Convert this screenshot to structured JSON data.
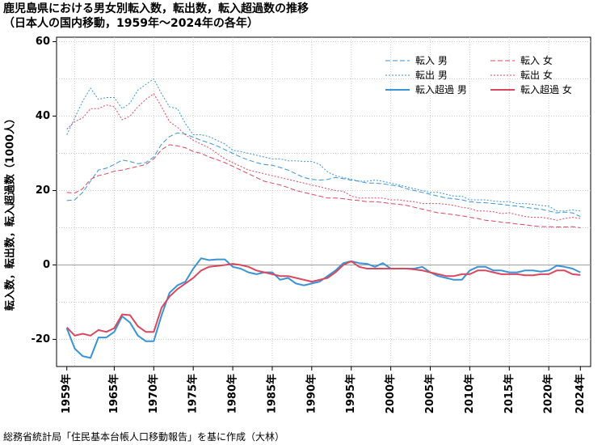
{
  "title_line1": "鹿児島県における男女別転入数，転出数，転入超過数の推移",
  "title_line2": "（日本人の国内移動，1959年～2024年の各年）",
  "source": "総務省統計局「住民基本台帳人口移動報告」を基に作成（大林）",
  "chart_data": {
    "type": "line",
    "title": "鹿児島県における男女別転入数，転出数，転入超過数の推移",
    "subtitle": "（日本人の国内移動，1959年～2024年の各年）",
    "xlabel": "",
    "ylabel": "転入数，転出数，転入超過数（1000人）",
    "ylim": [
      -25,
      60
    ],
    "xlim": [
      1959,
      2024
    ],
    "yticks": [
      -20,
      0,
      20,
      40,
      60
    ],
    "xticks": [
      "1959年",
      "1965年",
      "1970年",
      "1975年",
      "1980年",
      "1985年",
      "1990年",
      "1995年",
      "2000年",
      "2005年",
      "2010年",
      "2015年",
      "2020年",
      "2024年"
    ],
    "grid": true,
    "legend_position": "top-right",
    "x": [
      1959,
      1960,
      1961,
      1962,
      1963,
      1964,
      1965,
      1966,
      1967,
      1968,
      1969,
      1970,
      1971,
      1972,
      1973,
      1974,
      1975,
      1976,
      1977,
      1978,
      1979,
      1980,
      1981,
      1982,
      1983,
      1984,
      1985,
      1986,
      1987,
      1988,
      1989,
      1990,
      1991,
      1992,
      1993,
      1994,
      1995,
      1996,
      1997,
      1998,
      1999,
      2000,
      2001,
      2002,
      2003,
      2004,
      2005,
      2006,
      2007,
      2008,
      2009,
      2010,
      2011,
      2012,
      2013,
      2014,
      2015,
      2016,
      2017,
      2018,
      2019,
      2020,
      2021,
      2022,
      2023,
      2024
    ],
    "series": [
      {
        "name": "転入 男",
        "color": "#3a93d7",
        "dash": "6,3",
        "width": 1,
        "values": [
          17.3,
          17.5,
          19.5,
          22.5,
          25.5,
          26.0,
          27.0,
          28.2,
          27.8,
          27.2,
          27.5,
          29.0,
          32.5,
          34.5,
          35.5,
          35.2,
          34.3,
          33.5,
          32.8,
          32.0,
          31.0,
          30.0,
          29.0,
          28.2,
          27.5,
          27.0,
          26.8,
          26.2,
          25.5,
          24.5,
          23.5,
          23.0,
          22.8,
          23.0,
          23.5,
          23.2,
          22.8,
          22.5,
          22.0,
          22.0,
          21.8,
          21.5,
          21.2,
          20.5,
          20.0,
          19.5,
          19.0,
          18.5,
          18.0,
          17.8,
          17.5,
          17.0,
          16.8,
          16.7,
          16.5,
          16.3,
          16.0,
          15.8,
          15.5,
          15.2,
          15.0,
          14.5,
          14.0,
          14.2,
          14.0,
          13.0
        ]
      },
      {
        "name": "転出 男",
        "color": "#3a93d7",
        "dash": "2,2",
        "width": 1,
        "values": [
          35.0,
          39.5,
          44.0,
          47.5,
          44.5,
          45.0,
          45.0,
          42.0,
          43.5,
          47.0,
          48.5,
          50.0,
          46.0,
          42.5,
          42.0,
          38.0,
          35.0,
          35.0,
          34.5,
          33.5,
          32.5,
          30.8,
          30.5,
          30.0,
          29.5,
          29.0,
          28.5,
          28.5,
          28.0,
          28.0,
          27.8,
          27.8,
          27.0,
          25.0,
          24.0,
          23.5,
          23.0,
          22.5,
          22.5,
          22.8,
          22.5,
          22.0,
          21.5,
          21.0,
          20.5,
          20.0,
          19.5,
          19.5,
          19.0,
          18.5,
          18.5,
          17.5,
          17.5,
          17.5,
          17.2,
          17.0,
          17.0,
          16.5,
          16.5,
          16.3,
          16.0,
          15.8,
          14.5,
          14.5,
          14.8,
          14.5
        ]
      },
      {
        "name": "転入超過 男",
        "color": "#3a93d7",
        "dash": "",
        "width": 2,
        "values": [
          -17.0,
          -22.5,
          -24.5,
          -25.0,
          -19.5,
          -19.5,
          -18.0,
          -13.8,
          -15.5,
          -19.0,
          -20.5,
          -20.5,
          -13.5,
          -7.5,
          -5.5,
          -4.5,
          -1.0,
          1.8,
          1.3,
          1.5,
          1.5,
          -0.5,
          -1.0,
          -2.0,
          -2.5,
          -2.0,
          -2.0,
          -4.0,
          -3.5,
          -5.0,
          -5.5,
          -5.0,
          -4.5,
          -3.0,
          -1.5,
          0.5,
          1.0,
          0.5,
          0.3,
          -0.5,
          0.5,
          -1.0,
          -1.0,
          -1.0,
          -1.0,
          -0.5,
          -2.0,
          -3.0,
          -3.5,
          -4.0,
          -4.0,
          -1.5,
          -0.5,
          -0.5,
          -1.5,
          -1.5,
          -2.0,
          -2.0,
          -1.5,
          -1.5,
          -1.8,
          -1.5,
          -0.2,
          -0.5,
          -1.0,
          -2.0
        ]
      },
      {
        "name": "転入 女",
        "color": "#d9485e",
        "dash": "6,3",
        "width": 1,
        "values": [
          19.5,
          19.3,
          20.5,
          23.0,
          24.0,
          24.5,
          25.2,
          25.5,
          26.0,
          26.5,
          27.0,
          28.5,
          31.0,
          32.3,
          32.0,
          31.5,
          30.5,
          30.0,
          29.0,
          28.3,
          27.5,
          26.5,
          25.5,
          24.5,
          23.5,
          22.5,
          22.0,
          21.5,
          20.8,
          20.0,
          19.5,
          19.0,
          18.5,
          18.0,
          18.0,
          17.8,
          17.5,
          17.3,
          17.0,
          17.0,
          16.8,
          16.5,
          16.3,
          16.0,
          15.5,
          15.0,
          14.5,
          14.0,
          13.8,
          13.5,
          13.2,
          12.8,
          12.5,
          12.0,
          11.8,
          11.5,
          11.3,
          11.0,
          10.8,
          10.5,
          10.3,
          10.3,
          10.2,
          10.2,
          10.3,
          10.0
        ]
      },
      {
        "name": "転出 女",
        "color": "#d9485e",
        "dash": "2,2",
        "width": 1,
        "values": [
          36.5,
          38.5,
          39.5,
          42.0,
          42.0,
          43.0,
          42.5,
          39.0,
          40.0,
          42.5,
          44.5,
          46.0,
          42.5,
          38.5,
          37.0,
          35.0,
          33.5,
          32.5,
          31.5,
          30.0,
          28.5,
          27.5,
          26.5,
          25.5,
          25.0,
          24.5,
          24.0,
          23.5,
          23.0,
          22.5,
          22.0,
          21.5,
          21.0,
          20.5,
          20.0,
          19.8,
          18.5,
          18.0,
          18.0,
          18.0,
          18.0,
          17.5,
          17.5,
          17.2,
          17.0,
          16.5,
          16.5,
          16.5,
          16.3,
          16.0,
          15.5,
          15.2,
          14.5,
          14.5,
          14.3,
          13.8,
          14.0,
          13.5,
          13.0,
          12.8,
          12.8,
          12.5,
          12.0,
          12.5,
          12.8,
          12.5
        ]
      },
      {
        "name": "転入超過 女",
        "color": "#d9485e",
        "dash": "",
        "width": 2,
        "values": [
          -16.8,
          -19.0,
          -18.5,
          -19.0,
          -17.5,
          -18.0,
          -17.0,
          -13.3,
          -13.5,
          -16.5,
          -18.0,
          -18.0,
          -11.5,
          -8.5,
          -6.5,
          -5.0,
          -3.5,
          -1.5,
          -0.5,
          -0.3,
          0.0,
          0.3,
          0.0,
          -0.5,
          -1.5,
          -2.0,
          -2.5,
          -3.0,
          -3.0,
          -3.5,
          -4.0,
          -4.5,
          -4.0,
          -3.5,
          -2.0,
          0.0,
          1.0,
          -0.5,
          -1.0,
          -1.0,
          -1.0,
          -1.0,
          -1.0,
          -1.0,
          -1.2,
          -1.5,
          -2.0,
          -2.5,
          -3.0,
          -3.0,
          -2.5,
          -2.5,
          -1.5,
          -1.5,
          -2.0,
          -2.5,
          -2.5,
          -2.5,
          -2.8,
          -2.8,
          -2.5,
          -2.5,
          -1.5,
          -1.5,
          -2.5,
          -2.7
        ]
      }
    ]
  }
}
